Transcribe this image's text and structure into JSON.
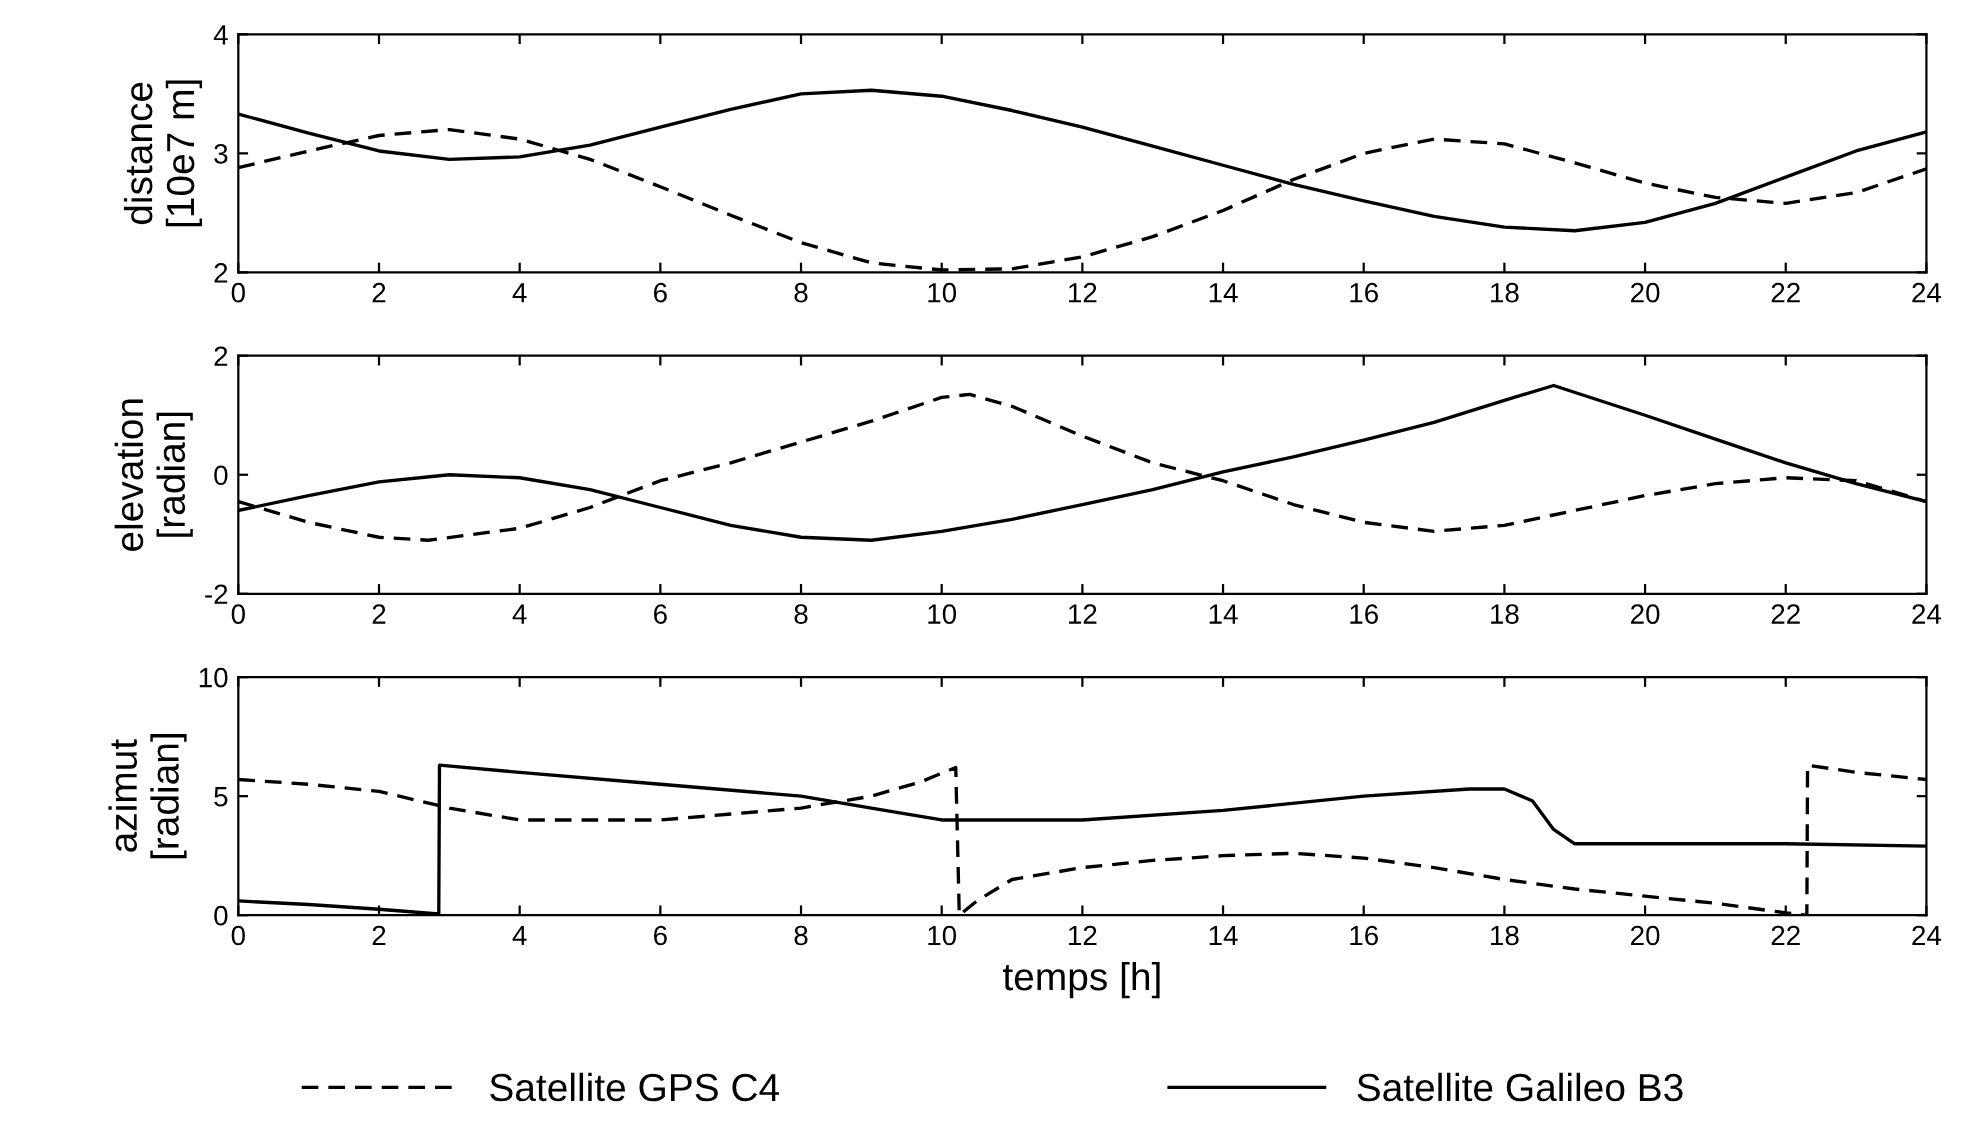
{
  "chart_data": [
    {
      "type": "line",
      "ylabel": "distance\n[10e7 m]",
      "xlim": [
        0,
        24
      ],
      "xticks": [
        0,
        2,
        4,
        6,
        8,
        10,
        12,
        14,
        16,
        18,
        20,
        22,
        24
      ],
      "ylim": [
        2,
        4
      ],
      "yticks": [
        2,
        3,
        4
      ],
      "grid": false,
      "legend": false,
      "series": [
        {
          "color": "#000000",
          "line_style": "dashed",
          "x": [
            0,
            1,
            2,
            3,
            4,
            5,
            6,
            7,
            8,
            9,
            10,
            11,
            12,
            13,
            14,
            15,
            16,
            17,
            18,
            19,
            20,
            21,
            22,
            23,
            24
          ],
          "values": [
            2.88,
            3.02,
            3.15,
            3.2,
            3.12,
            2.95,
            2.72,
            2.48,
            2.25,
            2.08,
            2.02,
            2.03,
            2.13,
            2.3,
            2.52,
            2.78,
            3.0,
            3.12,
            3.08,
            2.92,
            2.75,
            2.63,
            2.58,
            2.67,
            2.87
          ]
        },
        {
          "color": "#000000",
          "line_style": "solid",
          "x": [
            0,
            1,
            2,
            3,
            4,
            5,
            6,
            7,
            8,
            9,
            10,
            11,
            12,
            13,
            14,
            15,
            16,
            17,
            18,
            19,
            20,
            21,
            22,
            23,
            24
          ],
          "values": [
            3.33,
            3.17,
            3.02,
            2.95,
            2.97,
            3.07,
            3.22,
            3.37,
            3.5,
            3.53,
            3.48,
            3.36,
            3.22,
            3.06,
            2.9,
            2.74,
            2.6,
            2.47,
            2.38,
            2.35,
            2.42,
            2.58,
            2.8,
            3.02,
            3.18
          ]
        }
      ]
    },
    {
      "type": "line",
      "ylabel": "elevation\n[radian]",
      "xlim": [
        0,
        24
      ],
      "xticks": [
        0,
        2,
        4,
        6,
        8,
        10,
        12,
        14,
        16,
        18,
        20,
        22,
        24
      ],
      "ylim": [
        -2,
        2
      ],
      "yticks": [
        -2,
        0,
        2
      ],
      "grid": false,
      "legend": false,
      "series": [
        {
          "color": "#000000",
          "line_style": "dashed",
          "x": [
            0,
            1,
            2,
            2.7,
            4,
            5,
            6,
            7,
            8,
            9,
            10,
            10.4,
            11,
            12,
            13,
            14,
            15,
            16,
            17,
            18,
            19,
            20,
            21,
            22,
            23,
            24
          ],
          "values": [
            -0.45,
            -0.8,
            -1.05,
            -1.1,
            -0.9,
            -0.55,
            -0.1,
            0.2,
            0.55,
            0.9,
            1.3,
            1.35,
            1.15,
            0.65,
            0.2,
            -0.1,
            -0.5,
            -0.8,
            -0.95,
            -0.85,
            -0.6,
            -0.35,
            -0.15,
            -0.05,
            -0.1,
            -0.45
          ]
        },
        {
          "color": "#000000",
          "line_style": "solid",
          "x": [
            0,
            1,
            2,
            3,
            4,
            5,
            6,
            7,
            8,
            9,
            10,
            11,
            12,
            13,
            14,
            15,
            16,
            17,
            18,
            18.7,
            20,
            21,
            22,
            23,
            24
          ],
          "values": [
            -0.6,
            -0.35,
            -0.12,
            0.0,
            -0.05,
            -0.25,
            -0.55,
            -0.85,
            -1.05,
            -1.1,
            -0.95,
            -0.75,
            -0.5,
            -0.25,
            0.05,
            0.3,
            0.58,
            0.88,
            1.25,
            1.5,
            1.0,
            0.6,
            0.2,
            -0.15,
            -0.45
          ]
        }
      ]
    },
    {
      "type": "line",
      "ylabel": "azimut\n[radian]",
      "xlabel": "temps [h]",
      "xlim": [
        0,
        24
      ],
      "xticks": [
        0,
        2,
        4,
        6,
        8,
        10,
        12,
        14,
        16,
        18,
        20,
        22,
        24
      ],
      "ylim": [
        0,
        10
      ],
      "yticks": [
        0,
        5,
        10
      ],
      "grid": false,
      "legend": "bottom",
      "series": [
        {
          "name": "Satellite GPS C4",
          "color": "#000000",
          "line_style": "dashed",
          "x": [
            0,
            1,
            2,
            3,
            4,
            6,
            8,
            9,
            9.7,
            10.2,
            10.25,
            10.5,
            11,
            12,
            13,
            14,
            15,
            16,
            17,
            18,
            19,
            20,
            21,
            22,
            22.3,
            22.31,
            23,
            24
          ],
          "values": [
            5.7,
            5.5,
            5.2,
            4.5,
            4.0,
            4.0,
            4.5,
            5.0,
            5.6,
            6.2,
            0.0,
            0.6,
            1.5,
            2.0,
            2.3,
            2.5,
            2.6,
            2.4,
            2.0,
            1.5,
            1.1,
            0.8,
            0.5,
            0.1,
            0.0,
            6.3,
            6.0,
            5.7
          ]
        },
        {
          "name": "Satellite Galileo B3",
          "color": "#000000",
          "line_style": "solid",
          "x": [
            0,
            1,
            2,
            2.85,
            2.86,
            4,
            6,
            8,
            9,
            10,
            12,
            14,
            16,
            17.5,
            18,
            18.4,
            18.7,
            19,
            20,
            22,
            24
          ],
          "values": [
            0.6,
            0.45,
            0.25,
            0.05,
            6.3,
            6.0,
            5.5,
            5.0,
            4.5,
            4.0,
            4.0,
            4.4,
            5.0,
            5.3,
            5.3,
            4.8,
            3.6,
            3.0,
            3.0,
            3.0,
            2.9
          ]
        }
      ]
    }
  ]
}
